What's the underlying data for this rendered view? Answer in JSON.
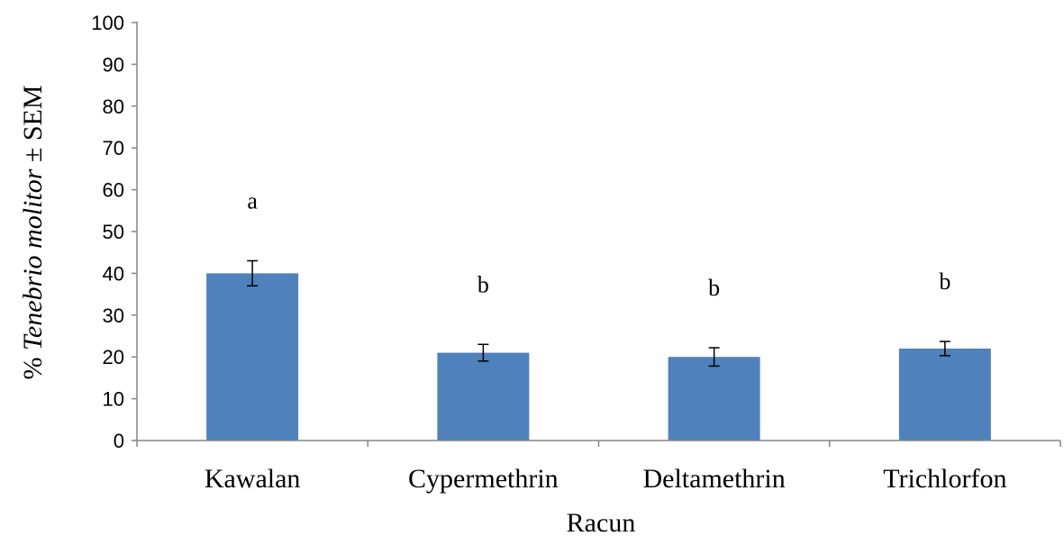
{
  "chart_data": {
    "type": "bar",
    "categories": [
      "Kawalan",
      "Cypermethrin",
      "Deltamethrin",
      "Trichlorfon"
    ],
    "values": [
      40,
      21,
      20,
      22
    ],
    "errors": [
      3,
      2,
      2.2,
      1.7
    ],
    "significance_labels": [
      "a",
      "b",
      "b",
      "b"
    ],
    "xlabel": "Racun",
    "ylabel": {
      "prefix": "% ",
      "italic": "Tenebrio molitor",
      "suffix": " ± SEM"
    },
    "ylim": [
      0,
      100
    ],
    "yticks": [
      0,
      10,
      20,
      30,
      40,
      50,
      60,
      70,
      80,
      90,
      100
    ],
    "grid": false,
    "legend": "none",
    "bar_color": "#4F81BD",
    "axis_color": "#868686"
  }
}
